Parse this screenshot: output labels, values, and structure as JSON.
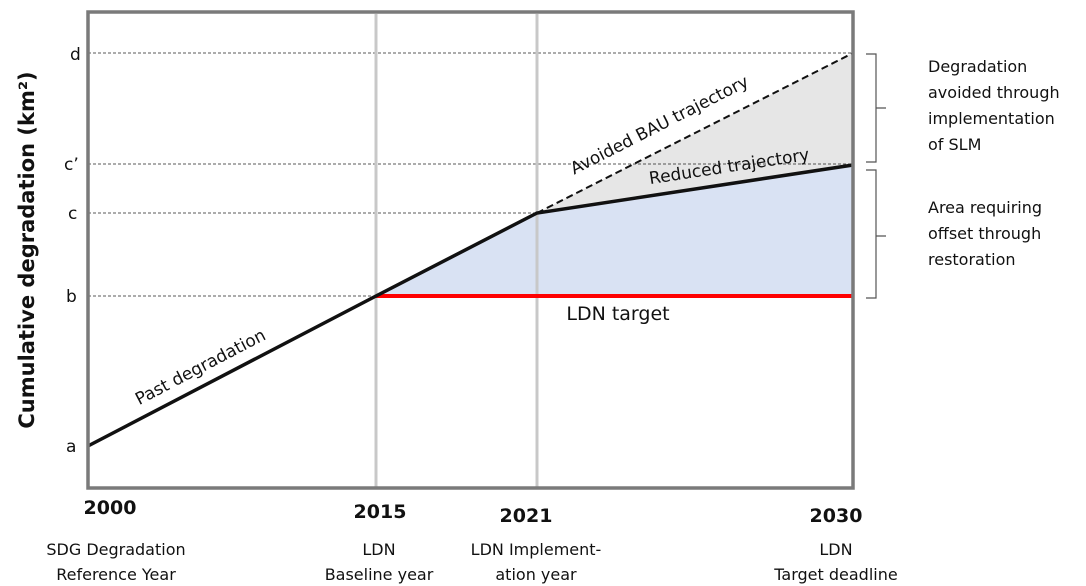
{
  "y_axis_title": "Cumulative degradation (km²)",
  "y_labels": [
    "d",
    "c’",
    "c",
    "b",
    "a"
  ],
  "x_labels": [
    {
      "year": "2000",
      "caption": [
        "SDG Degradation",
        "Reference Year"
      ]
    },
    {
      "year": "2015",
      "caption": [
        "LDN",
        "Baseline year"
      ]
    },
    {
      "year": "2021",
      "caption": [
        "LDN Implement-",
        "ation year"
      ]
    },
    {
      "year": "2030",
      "caption": [
        "LDN",
        "Target deadline"
      ]
    }
  ],
  "line_labels": {
    "past": "Past degradation",
    "bau": "Avoided BAU trajectory",
    "reduced": "Reduced trajectory",
    "target": "LDN target"
  },
  "annotations": [
    [
      "Degradation",
      "avoided through",
      "implementation",
      "of SLM"
    ],
    [
      "Area requiring",
      "offset through",
      "restoration"
    ]
  ]
}
